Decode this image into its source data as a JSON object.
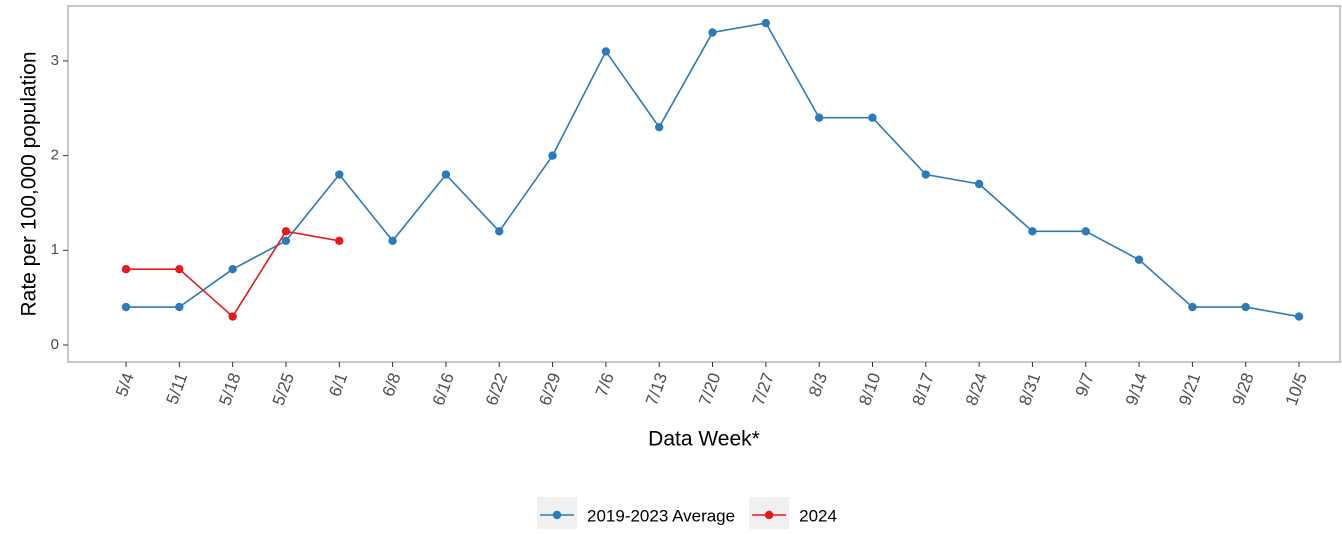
{
  "chart_data": {
    "type": "line",
    "x_label": "Data Week*",
    "y_label": "Rate per 100,000 population",
    "categories": [
      "5/4",
      "5/11",
      "5/18",
      "5/25",
      "6/1",
      "6/8",
      "6/16",
      "6/22",
      "6/29",
      "7/6",
      "7/13",
      "7/20",
      "7/27",
      "8/3",
      "8/10",
      "8/17",
      "8/24",
      "8/31",
      "9/7",
      "9/14",
      "9/21",
      "9/28",
      "10/5"
    ],
    "series": [
      {
        "name": "2019-2023 Average",
        "color": "#2b7bba",
        "values": [
          0.4,
          0.4,
          0.8,
          1.1,
          1.8,
          1.1,
          1.8,
          1.2,
          2.0,
          3.1,
          2.3,
          3.3,
          3.4,
          2.4,
          2.4,
          1.8,
          1.7,
          1.2,
          1.2,
          0.9,
          0.4,
          0.4,
          0.3
        ]
      },
      {
        "name": "2024",
        "color": "#e8191c",
        "values": [
          0.8,
          0.8,
          0.3,
          1.2,
          1.1,
          null,
          null,
          null,
          null,
          null,
          null,
          null,
          null,
          null,
          null,
          null,
          null,
          null,
          null,
          null,
          null,
          null,
          null
        ]
      }
    ],
    "ylim": [
      -0.18,
      3.58
    ],
    "yticks": [
      0,
      1,
      2,
      3
    ],
    "grid": false,
    "legend": "bottom"
  }
}
